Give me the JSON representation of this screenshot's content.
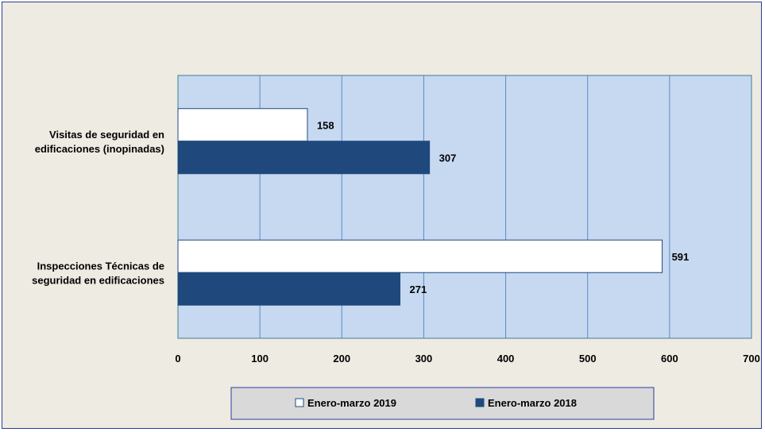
{
  "chart_data": {
    "type": "bar",
    "orientation": "horizontal",
    "categories": [
      "Visitas de seguridad en edificaciones (inopinadas)",
      "Inspecciones Técnicas de seguridad en edificaciones"
    ],
    "category_lines": [
      [
        "Visitas de seguridad en",
        "edificaciones (inopinadas)"
      ],
      [
        "Inspecciones Técnicas de",
        "seguridad en edificaciones"
      ]
    ],
    "series": [
      {
        "name": "Enero-marzo 2019",
        "values": [
          158,
          591
        ],
        "color": "#ffffff"
      },
      {
        "name": "Enero-marzo 2018",
        "values": [
          307,
          271
        ],
        "color": "#1f497d"
      }
    ],
    "xlim": [
      0,
      700
    ],
    "xticks": [
      0,
      100,
      200,
      300,
      400,
      500,
      600,
      700
    ],
    "grid": true,
    "legend_position": "bottom",
    "plot_background": "#c6d9f0",
    "grid_color": "#5b8bc8"
  }
}
